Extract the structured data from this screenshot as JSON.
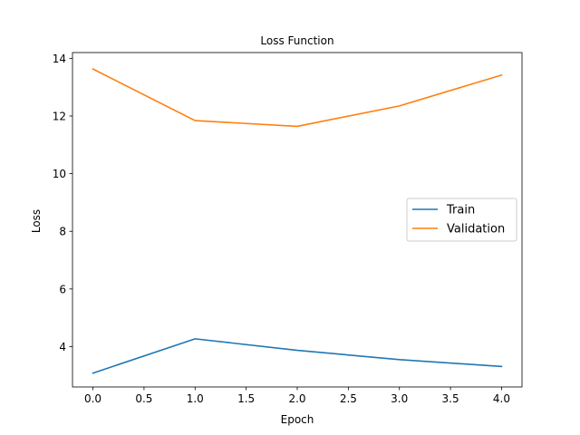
{
  "chart_data": {
    "type": "line",
    "title": "Loss Function",
    "xlabel": "Epoch",
    "ylabel": "Loss",
    "x": [
      0,
      1,
      2,
      3,
      4
    ],
    "xlim": [
      -0.2,
      4.2
    ],
    "ylim": [
      2.6,
      14.2
    ],
    "xticks": [
      0.0,
      0.5,
      1.0,
      1.5,
      2.0,
      2.5,
      3.0,
      3.5,
      4.0
    ],
    "xtick_labels": [
      "0.0",
      "0.5",
      "1.0",
      "1.5",
      "2.0",
      "2.5",
      "3.0",
      "3.5",
      "4.0"
    ],
    "yticks": [
      4,
      6,
      8,
      10,
      12,
      14
    ],
    "ytick_labels": [
      "4",
      "6",
      "8",
      "10",
      "12",
      "14"
    ],
    "grid": false,
    "legend_position": "center-right",
    "series": [
      {
        "name": "Train",
        "color": "#1f77b4",
        "values": [
          3.08,
          4.27,
          3.87,
          3.55,
          3.31
        ]
      },
      {
        "name": "Validation",
        "color": "#ff7f0e",
        "values": [
          13.63,
          11.84,
          11.64,
          12.35,
          13.42
        ]
      }
    ]
  }
}
